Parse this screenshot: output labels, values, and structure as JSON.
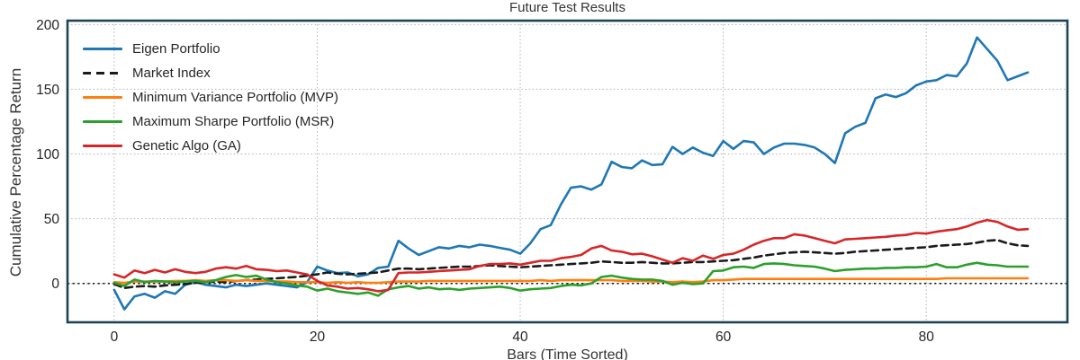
{
  "chart_data": {
    "type": "line",
    "title": "Future Test Results",
    "xlabel": "Bars (Time Sorted)",
    "ylabel": "Cumulative Percentage Return",
    "x_start": 0,
    "x_step": 1,
    "xlim": [
      -4.6,
      93.9
    ],
    "ylim": [
      -30,
      203
    ],
    "xticks": [
      0,
      20,
      40,
      60,
      80
    ],
    "yticks": [
      0,
      50,
      100,
      150,
      200
    ],
    "grid": "dotted",
    "zero_line": true,
    "legend_position": "upper-left",
    "colors": {
      "spine": "#1f4554",
      "grid": "#b0b0b0",
      "zero_line": "#111111",
      "text": "#262626",
      "title_text": "#333333"
    },
    "series": [
      {
        "key": "eigen",
        "name": "Eigen Portfolio",
        "color": "#1f77b4",
        "style": "solid",
        "values": [
          -5,
          -20,
          -10,
          -8,
          -11,
          -6,
          -8,
          -1,
          1,
          -1,
          -2,
          -3,
          -1,
          -2,
          -1,
          0,
          -1,
          -2,
          -3,
          1,
          13,
          10,
          8,
          8.5,
          5.5,
          7,
          12,
          13,
          33,
          27,
          22,
          25,
          28,
          27,
          29,
          28,
          30,
          29,
          27.5,
          26,
          23,
          31,
          42,
          45,
          61,
          74,
          75,
          72.5,
          76.5,
          94,
          90,
          89,
          95,
          91.5,
          92,
          105.5,
          100,
          105,
          101,
          98.5,
          110,
          104,
          110,
          109,
          100,
          105,
          108,
          108,
          107,
          105,
          100,
          93,
          116,
          121,
          124,
          143,
          146,
          144,
          147,
          153,
          156,
          157,
          161,
          160,
          170,
          190,
          181,
          172,
          157,
          160,
          163
        ]
      },
      {
        "key": "market",
        "name": "Market Index",
        "color": "#1a1a1a",
        "style": "dashed",
        "values": [
          -0.5,
          -3.5,
          -2.5,
          -2,
          -2.5,
          -1.5,
          -1,
          -0.5,
          0.5,
          1,
          1.5,
          1,
          2,
          2.5,
          3,
          3.5,
          4,
          4.5,
          5,
          6,
          7,
          8.5,
          7.5,
          7,
          7.5,
          8,
          8.5,
          10,
          11.5,
          11.5,
          11,
          11.5,
          12,
          12.5,
          13,
          13,
          13.5,
          14,
          13.5,
          13,
          12.5,
          13,
          13.5,
          14,
          14.5,
          15,
          15.5,
          16,
          17,
          16.5,
          16,
          16,
          16.5,
          16,
          15.5,
          15.5,
          16,
          16.5,
          16.5,
          17,
          17.5,
          18,
          19,
          20,
          21.5,
          22.5,
          23.5,
          24,
          24.5,
          24,
          23.5,
          23,
          23.5,
          24.5,
          25,
          25.5,
          26,
          26.5,
          27,
          27.5,
          28,
          29,
          29.5,
          30,
          30.5,
          31.5,
          33,
          33.5,
          31,
          29.5,
          29
        ]
      },
      {
        "key": "mvp",
        "name": "Minimum Variance Portfolio (MVP)",
        "color": "#ff7f0e",
        "style": "solid",
        "values": [
          1,
          0.5,
          1.5,
          1.5,
          1.5,
          1.5,
          2,
          2,
          2.5,
          2,
          2.5,
          2.5,
          2,
          2.5,
          2,
          2,
          1.5,
          1.5,
          1,
          1,
          1,
          0.5,
          1,
          0.5,
          1,
          0.5,
          0.5,
          1,
          1.5,
          1.5,
          1.5,
          2,
          2,
          2,
          2,
          2,
          2,
          2,
          2,
          2,
          2,
          2,
          2.5,
          2,
          2.5,
          2.5,
          2.5,
          2.5,
          2.5,
          2.5,
          2,
          2,
          2,
          1.5,
          1.5,
          1,
          1.5,
          1,
          1.5,
          2.5,
          2.5,
          3,
          3.5,
          3.5,
          3.5,
          3.5,
          3.5,
          3.5,
          3.5,
          3.5,
          3.5,
          3.5,
          3.5,
          3.5,
          3.5,
          3.5,
          3.5,
          3.5,
          3.5,
          3.5,
          3.5,
          3.5,
          4,
          4,
          4,
          4,
          4,
          4,
          4,
          4,
          4
        ]
      },
      {
        "key": "msr",
        "name": "Maximum Sharpe Portfolio (MSR)",
        "color": "#2ca02c",
        "style": "solid",
        "values": [
          0.5,
          -2,
          3,
          1,
          2,
          1.5,
          1,
          1.5,
          2,
          1,
          2.5,
          5,
          6.5,
          5,
          6,
          3,
          1,
          0,
          -1.5,
          -2.5,
          -5.5,
          -4,
          -6,
          -7,
          -8,
          -7,
          -9.5,
          -4.5,
          -3,
          -2,
          -4,
          -3,
          -4.5,
          -4,
          -5,
          -4,
          -3.5,
          -3,
          -2.5,
          -3.5,
          -5.5,
          -4.5,
          -4,
          -3.5,
          -2,
          -1,
          -1.5,
          0,
          5,
          6,
          4.5,
          3.5,
          3,
          3,
          2,
          -1,
          0.5,
          -0.5,
          0,
          9.5,
          10,
          12.5,
          13,
          12,
          15,
          15.5,
          15,
          14,
          13.5,
          13,
          11.5,
          9.5,
          10.5,
          11,
          11.5,
          11.5,
          12,
          12,
          12.5,
          12.5,
          13,
          15,
          12.5,
          12.5,
          14.5,
          16,
          14.5,
          14,
          13,
          13,
          13
        ]
      },
      {
        "key": "ga",
        "name": "Genetic Algo (GA)",
        "color": "#d62728",
        "style": "solid",
        "values": [
          7,
          4.5,
          10,
          8,
          10.5,
          8.5,
          11,
          9,
          8,
          9,
          11.5,
          12.5,
          11.5,
          13.5,
          11,
          10.5,
          9.5,
          10,
          8.5,
          7,
          2,
          -1.5,
          -2.5,
          -4,
          -3.5,
          -4.5,
          -6,
          -5,
          8,
          8.5,
          8.5,
          9,
          9.5,
          10,
          10.5,
          11,
          13.5,
          15,
          15,
          15.5,
          14.5,
          16,
          17.5,
          17.5,
          19.5,
          20.5,
          22,
          27,
          29,
          25.5,
          24.5,
          22.5,
          23,
          21,
          18.5,
          16,
          19.5,
          17.5,
          21.5,
          19,
          22,
          23,
          26,
          30,
          33,
          35,
          35,
          38,
          37,
          35,
          33,
          31,
          34,
          34.5,
          35,
          35.5,
          36,
          37,
          37.5,
          39,
          38.5,
          40,
          41,
          42,
          44,
          47,
          49,
          47.5,
          44,
          41.5,
          42
        ]
      }
    ]
  }
}
